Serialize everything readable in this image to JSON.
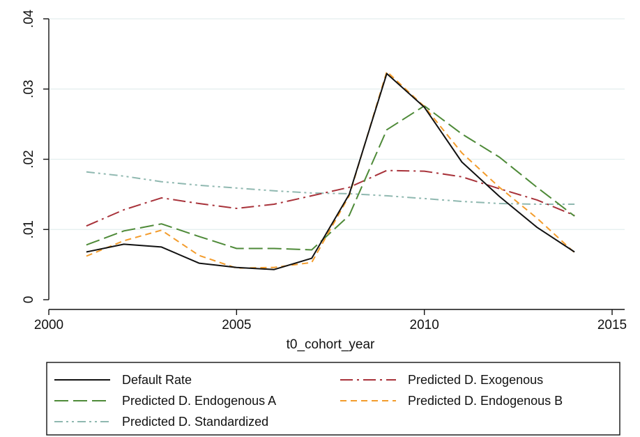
{
  "chart_data": {
    "type": "line",
    "xlabel": "t0_cohort_year",
    "ylabel": "",
    "xlim": [
      2000,
      2015
    ],
    "ylim": [
      0,
      0.04
    ],
    "x_ticks": [
      2000,
      2005,
      2010,
      2015
    ],
    "x_tick_labels": [
      "2000",
      "2005",
      "2010",
      "2015"
    ],
    "y_ticks": [
      0,
      0.01,
      0.02,
      0.03,
      0.04
    ],
    "y_tick_labels": [
      "0",
      ".01",
      ".02",
      ".03",
      ".04"
    ],
    "grid": "horizontal",
    "legend_position": "bottom",
    "x": [
      2001,
      2002,
      2003,
      2004,
      2005,
      2006,
      2007,
      2008,
      2009,
      2010,
      2011,
      2012,
      2013,
      2014
    ],
    "series": [
      {
        "name": "Default Rate",
        "color": "#111111",
        "dash": "solid",
        "values": [
          0.0068,
          0.0079,
          0.0075,
          0.0052,
          0.0046,
          0.0043,
          0.0059,
          0.015,
          0.0322,
          0.0274,
          0.0196,
          0.0147,
          0.0103,
          0.0068
        ]
      },
      {
        "name": "Predicted D. Exogenous",
        "color": "#a8323a",
        "dash": "dash-dot",
        "values": [
          0.0105,
          0.0128,
          0.0145,
          0.0137,
          0.013,
          0.0136,
          0.0148,
          0.016,
          0.0184,
          0.0183,
          0.0175,
          0.0158,
          0.0142,
          0.012
        ]
      },
      {
        "name": "Predicted D. Endogenous A",
        "color": "#4e8a38",
        "dash": "long-dash",
        "values": [
          0.0078,
          0.0098,
          0.0108,
          0.009,
          0.0073,
          0.0073,
          0.0071,
          0.012,
          0.0242,
          0.0276,
          0.0236,
          0.0203,
          0.016,
          0.0119
        ]
      },
      {
        "name": "Predicted D. Endogenous B",
        "color": "#f39c2c",
        "dash": "short-dash",
        "values": [
          0.0062,
          0.0084,
          0.0099,
          0.0063,
          0.0045,
          0.0046,
          0.0053,
          0.0148,
          0.0325,
          0.0275,
          0.0209,
          0.016,
          0.0116,
          0.0067
        ]
      },
      {
        "name": "Predicted D. Standardized",
        "color": "#8fb8b0",
        "dash": "dash-dot-dot",
        "values": [
          0.0182,
          0.0176,
          0.0168,
          0.0163,
          0.0159,
          0.0155,
          0.0152,
          0.0151,
          0.0148,
          0.0144,
          0.014,
          0.0137,
          0.0136,
          0.0136
        ]
      }
    ]
  }
}
